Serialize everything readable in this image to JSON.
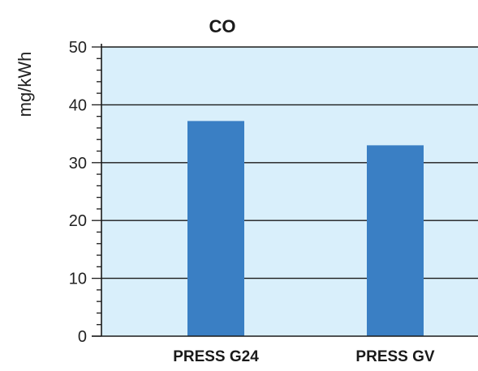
{
  "chart_data": {
    "type": "bar",
    "title": "CO",
    "ylabel": "mg/kWh",
    "xlabel": "",
    "categories": [
      "PRESS G24",
      "PRESS GV"
    ],
    "values": [
      37.2,
      33.0
    ],
    "ylim": [
      0,
      50
    ],
    "yticks": [
      0,
      10,
      20,
      30,
      40,
      50
    ],
    "ytick_labels": [
      "0",
      "10",
      "20",
      "30",
      "40",
      "50"
    ],
    "minor_ticks_per_major": 5,
    "grid": "horizontal",
    "legend": "none",
    "colors": {
      "bar": "#3a7fc4",
      "plot_background": "#d9effb",
      "axis": "#1a1a1a",
      "grid": "#1a1a1a"
    }
  }
}
